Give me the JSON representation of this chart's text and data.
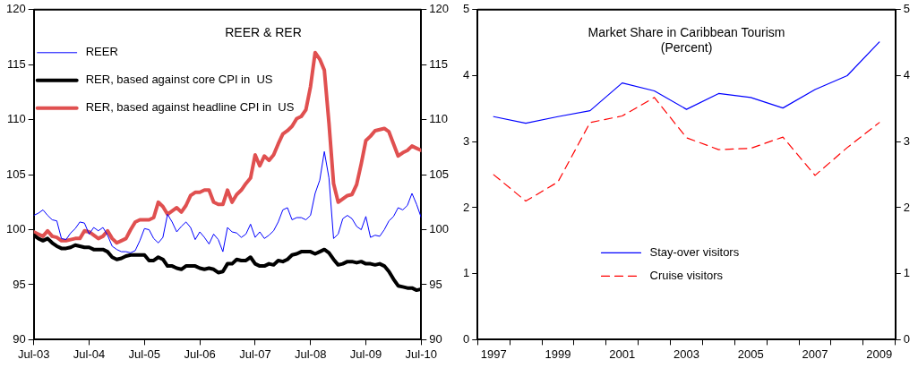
{
  "chart_data": [
    {
      "type": "line",
      "title": "REER & RER",
      "x": [
        "2003-07",
        "2003-08",
        "2003-09",
        "2003-10",
        "2003-11",
        "2003-12",
        "2004-01",
        "2004-02",
        "2004-03",
        "2004-04",
        "2004-05",
        "2004-06",
        "2004-07",
        "2004-08",
        "2004-09",
        "2004-10",
        "2004-11",
        "2004-12",
        "2005-01",
        "2005-02",
        "2005-03",
        "2005-04",
        "2005-05",
        "2005-06",
        "2005-07",
        "2005-08",
        "2005-09",
        "2005-10",
        "2005-11",
        "2005-12",
        "2006-01",
        "2006-02",
        "2006-03",
        "2006-04",
        "2006-05",
        "2006-06",
        "2006-07",
        "2006-08",
        "2006-09",
        "2006-10",
        "2006-11",
        "2006-12",
        "2007-01",
        "2007-02",
        "2007-03",
        "2007-04",
        "2007-05",
        "2007-06",
        "2007-07",
        "2007-08",
        "2007-09",
        "2007-10",
        "2007-11",
        "2007-12",
        "2008-01",
        "2008-02",
        "2008-03",
        "2008-04",
        "2008-05",
        "2008-06",
        "2008-07",
        "2008-08",
        "2008-09",
        "2008-10",
        "2008-11",
        "2008-12",
        "2009-01",
        "2009-02",
        "2009-03",
        "2009-04",
        "2009-05",
        "2009-06",
        "2009-07",
        "2009-08",
        "2009-09",
        "2009-10",
        "2009-11",
        "2009-12",
        "2010-01",
        "2010-02",
        "2010-03",
        "2010-04",
        "2010-05",
        "2010-06",
        "2010-07"
      ],
      "series": [
        {
          "name": "REER",
          "color": "#0000ff",
          "values": [
            101.3,
            101.5,
            101.8,
            101.3,
            100.9,
            100.8,
            99.2,
            99.1,
            99.7,
            100.1,
            100.7,
            100.6,
            99.6,
            100.2,
            99.9,
            100.2,
            99.5,
            98.5,
            98.2,
            98.0,
            98.0,
            97.9,
            98.1,
            99.0,
            100.1,
            100.0,
            99.2,
            98.8,
            99.3,
            101.4,
            100.7,
            99.8,
            100.3,
            100.7,
            100.2,
            99.1,
            99.8,
            99.3,
            98.7,
            99.6,
            99.1,
            98.0,
            100.2,
            99.8,
            99.7,
            99.3,
            99.6,
            100.5,
            99.3,
            99.8,
            99.2,
            99.5,
            99.9,
            100.7,
            101.8,
            102.0,
            100.9,
            101.1,
            101.1,
            100.9,
            101.3,
            103.3,
            104.5,
            107.1,
            104.7,
            99.2,
            99.6,
            101.0,
            101.3,
            101.0,
            100.3,
            100.0,
            101.2,
            99.3,
            99.5,
            99.4,
            100.0,
            100.8,
            101.2,
            102.0,
            101.8,
            102.2,
            103.3,
            102.3,
            101.1
          ]
        },
        {
          "name": "RER, based against core CPI in  US",
          "color": "#000000",
          "values": [
            99.5,
            99.2,
            99.0,
            99.2,
            98.8,
            98.5,
            98.3,
            98.3,
            98.4,
            98.6,
            98.5,
            98.4,
            98.4,
            98.2,
            98.2,
            98.2,
            98.0,
            97.5,
            97.3,
            97.4,
            97.6,
            97.7,
            97.7,
            97.7,
            97.7,
            97.2,
            97.2,
            97.5,
            97.3,
            96.7,
            96.7,
            96.5,
            96.4,
            96.7,
            96.7,
            96.7,
            96.5,
            96.4,
            96.5,
            96.4,
            96.1,
            96.2,
            96.9,
            96.9,
            97.3,
            97.2,
            97.2,
            97.5,
            96.9,
            96.7,
            96.7,
            96.9,
            96.8,
            97.2,
            97.1,
            97.3,
            97.7,
            97.8,
            98.0,
            98.0,
            98.0,
            97.8,
            98.0,
            98.2,
            97.9,
            97.3,
            96.8,
            96.9,
            97.1,
            97.1,
            97.0,
            97.1,
            96.9,
            96.9,
            96.8,
            96.9,
            96.7,
            96.2,
            95.5,
            94.9,
            94.8,
            94.7,
            94.7,
            94.5,
            94.6
          ]
        },
        {
          "name": "RER, based against headline CPI in  US",
          "color": "#e05050",
          "values": [
            99.8,
            99.6,
            99.4,
            99.9,
            99.4,
            99.3,
            99.0,
            99.0,
            99.1,
            99.2,
            99.2,
            99.9,
            99.8,
            99.5,
            99.2,
            99.4,
            99.9,
            99.2,
            98.8,
            99.0,
            99.2,
            100.0,
            100.7,
            100.9,
            100.9,
            100.9,
            101.1,
            102.5,
            102.1,
            101.4,
            101.7,
            102.0,
            101.6,
            102.2,
            103.1,
            103.4,
            103.4,
            103.6,
            103.6,
            102.5,
            102.3,
            102.3,
            103.6,
            102.5,
            103.2,
            103.6,
            104.2,
            104.7,
            106.8,
            105.8,
            106.7,
            106.3,
            106.8,
            107.8,
            108.7,
            109.0,
            109.4,
            110.1,
            110.3,
            110.9,
            113.0,
            116.1,
            115.5,
            114.5,
            109.7,
            104.2,
            102.5,
            102.8,
            103.1,
            103.2,
            104.1,
            106.0,
            108.1,
            108.5,
            109.0,
            109.1,
            109.2,
            108.9,
            107.8,
            106.7,
            107.0,
            107.2,
            107.6,
            107.4,
            107.2
          ]
        }
      ],
      "xlim": [
        "2003-07",
        "2010-07"
      ],
      "xticks": [
        {
          "value": "2003-07",
          "label": "Jul-03"
        },
        {
          "value": "2004-07",
          "label": "Jul-04"
        },
        {
          "value": "2005-07",
          "label": "Jul-05"
        },
        {
          "value": "2006-07",
          "label": "Jul-06"
        },
        {
          "value": "2007-07",
          "label": "Jul-07"
        },
        {
          "value": "2008-07",
          "label": "Jul-08"
        },
        {
          "value": "2009-07",
          "label": "Jul-09"
        },
        {
          "value": "2010-07",
          "label": "Jul-10"
        }
      ],
      "ylim": [
        90,
        120
      ],
      "yticks": [
        90,
        95,
        100,
        105,
        110,
        115,
        120
      ],
      "y2lim": [
        90,
        120
      ],
      "y2ticks": [
        90,
        95,
        100,
        105,
        110,
        115,
        120
      ],
      "grid": false,
      "legend": "top left",
      "marker": "none"
    },
    {
      "type": "line",
      "title": "Market Share in Caribbean Tourism",
      "subtitle": "(Percent)",
      "categories": [
        "1997",
        null,
        "1999",
        null,
        "2001",
        null,
        "2003",
        null,
        "2005",
        null,
        "2007",
        null,
        "2009"
      ],
      "series": [
        {
          "name": "Stay-over visitors",
          "color": "#0000ff",
          "values": [
            3.38,
            3.28,
            3.38,
            3.47,
            3.89,
            3.77,
            3.49,
            3.73,
            3.67,
            3.51,
            3.79,
            4.0,
            4.51
          ]
        },
        {
          "name": "Cruise visitors",
          "color": "#ff0000",
          "line_style": "dashed",
          "values": [
            2.5,
            2.1,
            2.39,
            3.29,
            3.39,
            3.67,
            3.06,
            2.88,
            2.9,
            3.07,
            2.49,
            2.91,
            3.29
          ]
        }
      ],
      "ylim": [
        0,
        5
      ],
      "yticks": [
        0,
        1,
        2,
        3,
        4,
        5
      ],
      "y2lim": [
        0,
        5
      ],
      "y2ticks": [
        0,
        1,
        2,
        3,
        4,
        5
      ],
      "grid": false,
      "legend": "bottom",
      "marker": "none"
    }
  ]
}
